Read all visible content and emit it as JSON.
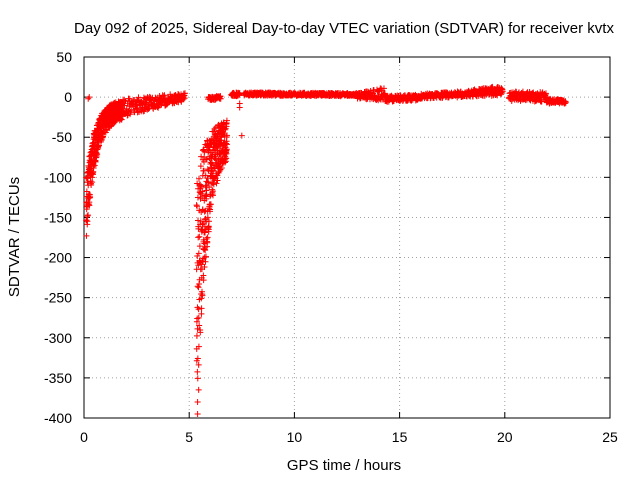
{
  "chart_data": {
    "type": "scatter",
    "title": "Day 092 of 2025, Sidereal Day-to-day VTEC variation (SDTVAR) for receiver kvtx",
    "xlabel": "GPS time / hours",
    "ylabel": "SDTVAR / TECUs",
    "xlim": [
      0,
      25
    ],
    "ylim": [
      -400,
      50
    ],
    "xticks": [
      0,
      5,
      10,
      15,
      20,
      25
    ],
    "yticks": [
      50,
      0,
      -50,
      -100,
      -150,
      -200,
      -250,
      -300,
      -350,
      -400
    ],
    "grid": true,
    "marker": "plus",
    "series": [
      {
        "name": "SDTVAR",
        "color": "#ff0000",
        "segments": [
          {
            "kind": "recovery",
            "t_start": 0.1,
            "t_end": 1.8,
            "y_start": [
              -180,
              -100
            ],
            "y_end": [
              -25,
              -2
            ],
            "tau": 0.45
          },
          {
            "kind": "recovery",
            "t_start": 5.35,
            "t_end": 6.8,
            "y_start": [
              -400,
              -100
            ],
            "y_end": [
              -60,
              -25
            ],
            "tau": 0.5
          },
          {
            "kind": "band",
            "t_start": 1.8,
            "t_end": 4.8,
            "y_start": [
              -25,
              -2
            ],
            "y_end": [
              -5,
              5
            ]
          },
          {
            "kind": "band",
            "t_start": 5.9,
            "t_end": 6.5,
            "y_start": [
              -4,
              0
            ],
            "y_end": [
              -3,
              2
            ]
          },
          {
            "kind": "band",
            "t_start": 7.0,
            "t_end": 7.4,
            "y_start": [
              1,
              6
            ],
            "y_end": [
              1,
              6
            ]
          },
          {
            "kind": "band",
            "t_start": 7.6,
            "t_end": 13.0,
            "y_start": [
              2,
              6
            ],
            "y_end": [
              1,
              5
            ]
          },
          {
            "kind": "band",
            "t_start": 13.0,
            "t_end": 14.3,
            "y_start": [
              -2,
              6
            ],
            "y_end": [
              -5,
              12
            ]
          },
          {
            "kind": "band",
            "t_start": 14.3,
            "t_end": 16.0,
            "y_start": [
              -6,
              2
            ],
            "y_end": [
              -4,
              3
            ]
          },
          {
            "kind": "band",
            "t_start": 16.0,
            "t_end": 18.2,
            "y_start": [
              -2,
              4
            ],
            "y_end": [
              0,
              8
            ]
          },
          {
            "kind": "band",
            "t_start": 18.2,
            "t_end": 19.9,
            "y_start": [
              0,
              8
            ],
            "y_end": [
              2,
              15
            ]
          },
          {
            "kind": "band",
            "t_start": 20.2,
            "t_end": 22.0,
            "y_start": [
              -5,
              8
            ],
            "y_end": [
              -6,
              6
            ]
          },
          {
            "kind": "band",
            "t_start": 22.0,
            "t_end": 22.9,
            "y_start": [
              -8,
              -2
            ],
            "y_end": [
              -8,
              -3
            ]
          }
        ],
        "outliers": [
          {
            "x": 0.2,
            "y": -2
          },
          {
            "x": 0.25,
            "y": 0
          },
          {
            "x": 7.4,
            "y": -8
          },
          {
            "x": 7.4,
            "y": -13
          },
          {
            "x": 7.5,
            "y": -48
          },
          {
            "x": 5.4,
            "y": -395
          },
          {
            "x": 5.4,
            "y": -380
          },
          {
            "x": 5.45,
            "y": -365
          }
        ]
      }
    ]
  }
}
